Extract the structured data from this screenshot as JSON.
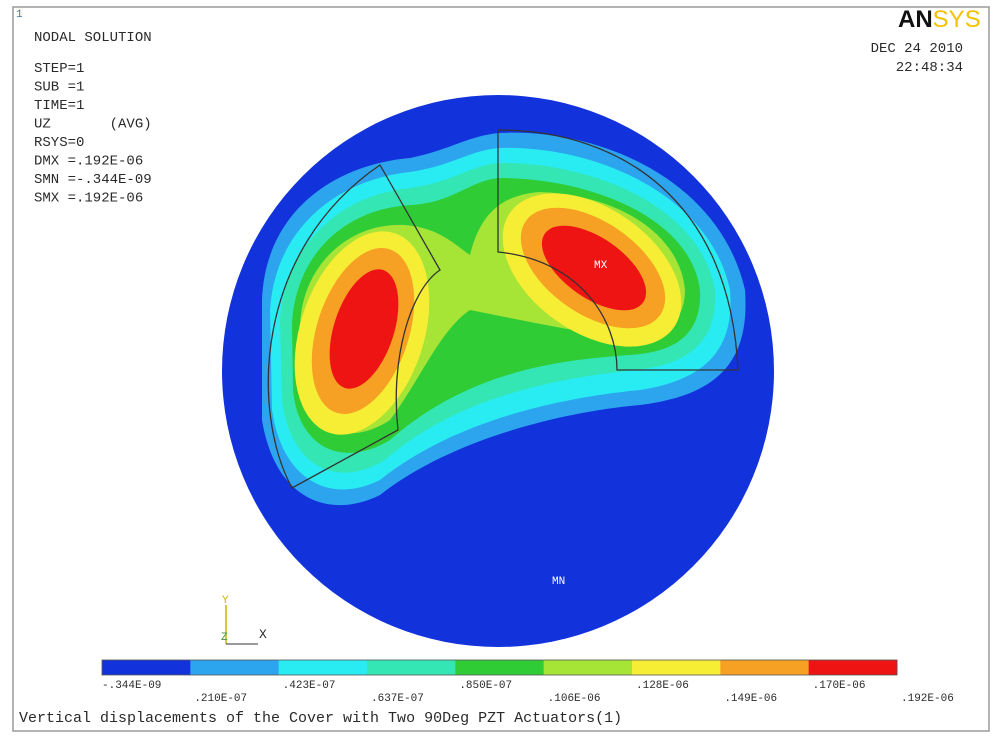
{
  "window_number": "1",
  "logo": {
    "bold": "AN",
    "light": "SYS"
  },
  "info": [
    "NODAL SOLUTION",
    "STEP=1",
    "SUB =1",
    "TIME=1",
    "UZ       (AVG)",
    "RSYS=0",
    "DMX =.192E-06",
    "SMN =-.344E-09",
    "SMX =.192E-06"
  ],
  "date": "DEC 24 2010",
  "time": "22:48:34",
  "markers": {
    "max": "MX",
    "min": "MN"
  },
  "triad": {
    "y": "Y",
    "z": "Z",
    "x": "X"
  },
  "legend": {
    "colors": [
      "#1232dc",
      "#2ca4ee",
      "#28ecf2",
      "#34e6b4",
      "#30cc36",
      "#a6e436",
      "#f6ee34",
      "#f6a024",
      "#ee1414"
    ],
    "labels": [
      "-.344E-09",
      ".210E-07",
      ".423E-07",
      ".637E-07",
      ".850E-07",
      ".106E-06",
      ".128E-06",
      ".149E-06",
      ".170E-06",
      ".192E-06"
    ]
  },
  "caption": "Vertical displacements of the Cover with Two 90Deg PZT Actuators(1)"
}
